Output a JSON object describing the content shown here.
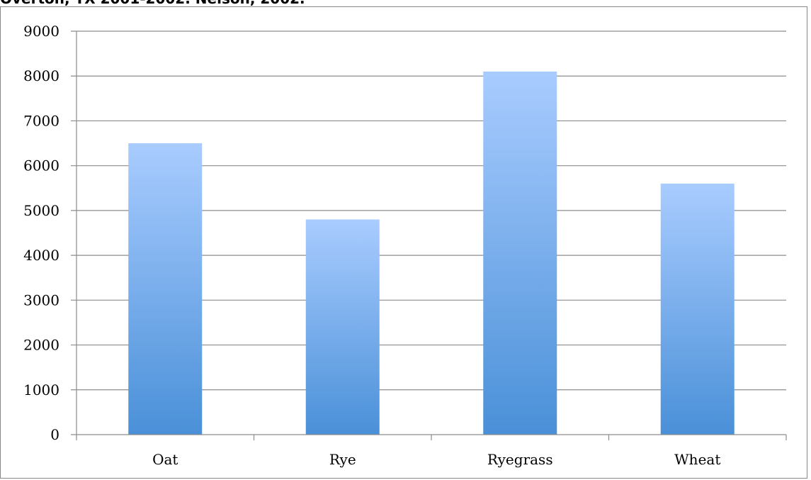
{
  "header": {
    "text": "Overton, TX 2001-2002. Nelson, 2002."
  },
  "chart_data": {
    "type": "bar",
    "categories": [
      "Oat",
      "Rye",
      "Ryegrass",
      "Wheat"
    ],
    "values": [
      6500,
      4800,
      8100,
      5600
    ],
    "title": "",
    "xlabel": "",
    "ylabel": "",
    "ylim": [
      0,
      9000
    ],
    "y_ticks": [
      "0",
      "1000",
      "2000",
      "3000",
      "4000",
      "5000",
      "6000",
      "7000",
      "8000",
      "9000"
    ],
    "grid": true,
    "legend": "none",
    "colors": {
      "bar_top": "#a9ccff",
      "bar_bottom": "#4a90d8",
      "grid": "#8c8c8c",
      "axis": "#8c8c8c"
    }
  }
}
